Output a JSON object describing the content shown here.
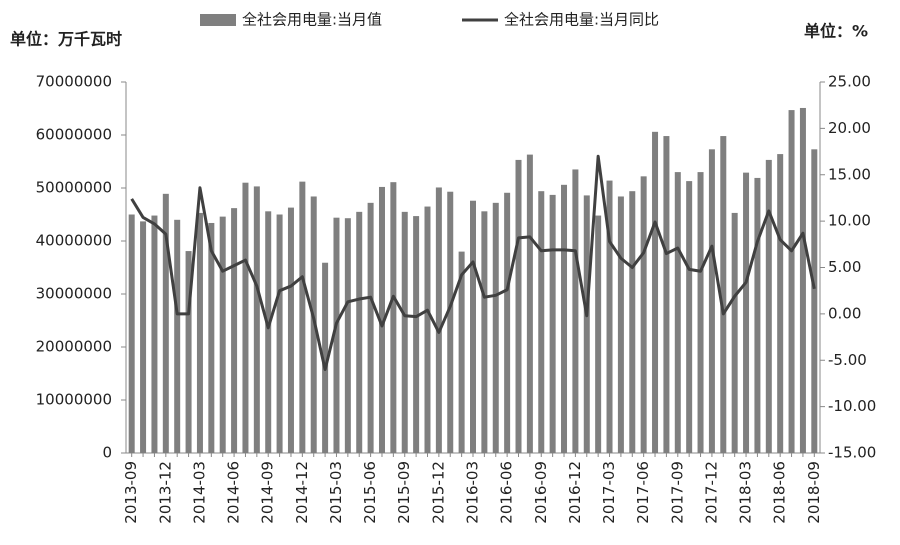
{
  "chart_data": {
    "type": "bar_line",
    "y_unit_label": "单位：万千瓦时",
    "y2_unit_label": "单位：%",
    "categories": [
      "2013-09",
      null,
      null,
      "2013-12",
      null,
      null,
      "2014-03",
      null,
      null,
      "2014-06",
      null,
      null,
      "2014-09",
      null,
      null,
      "2014-12",
      null,
      null,
      "2015-03",
      null,
      null,
      "2015-06",
      null,
      null,
      "2015-09",
      null,
      null,
      "2015-12",
      null,
      null,
      "2016-03",
      null,
      null,
      "2016-06",
      null,
      null,
      "2016-09",
      null,
      null,
      "2016-12",
      null,
      null,
      "2017-03",
      null,
      null,
      "2017-06",
      null,
      null,
      "2017-09",
      null,
      null,
      "2017-12",
      null,
      null,
      "2018-03",
      null,
      null,
      "2018-06",
      null,
      null,
      "2018-09"
    ],
    "series": [
      {
        "name": "全社会用电量:当月值",
        "type": "bar",
        "color": "#7f7f7f",
        "values": [
          45000000,
          43700000,
          44800000,
          48900000,
          44000000,
          38100000,
          45300000,
          43400000,
          44600000,
          46200000,
          51000000,
          50300000,
          45600000,
          45000000,
          46300000,
          51200000,
          48400000,
          35900000,
          44400000,
          44300000,
          45500000,
          47200000,
          50200000,
          51100000,
          45500000,
          44700000,
          46500000,
          50100000,
          49300000,
          38000000,
          47600000,
          45600000,
          47200000,
          49100000,
          55300000,
          56300000,
          49400000,
          48700000,
          50600000,
          53500000,
          48600000,
          44800000,
          51400000,
          48400000,
          49400000,
          52200000,
          60600000,
          59800000,
          53000000,
          51300000,
          53000000,
          57300000,
          59800000,
          45300000,
          52900000,
          51900000,
          55300000,
          56400000,
          64700000,
          65100000,
          57300000
        ]
      },
      {
        "name": "全社会用电量:当月同比",
        "type": "line",
        "axis": "y2",
        "color": "#404040",
        "values": [
          12.4,
          10.4,
          9.7,
          8.6,
          0.0,
          0.0,
          13.6,
          6.8,
          4.6,
          5.2,
          5.8,
          3.0,
          -1.5,
          2.5,
          3.0,
          4.0,
          -0.5,
          -6.0,
          -1.0,
          1.3,
          1.6,
          1.8,
          -1.3,
          1.9,
          -0.2,
          -0.3,
          0.4,
          -2.0,
          0.8,
          4.2,
          5.6,
          1.8,
          2.0,
          2.6,
          8.2,
          8.3,
          6.8,
          6.9,
          6.9,
          6.8,
          -0.2,
          17.0,
          7.8,
          6.0,
          5.0,
          6.6,
          9.9,
          6.5,
          7.1,
          4.8,
          4.6,
          7.3,
          0.0,
          1.9,
          3.4,
          7.8,
          11.1,
          8.0,
          6.8,
          8.7,
          2.7
        ]
      }
    ],
    "ylim": [
      0,
      70000000
    ],
    "yticks": [
      0,
      10000000,
      20000000,
      30000000,
      40000000,
      50000000,
      60000000,
      70000000
    ],
    "y2lim": [
      -15,
      25
    ],
    "y2ticks": [
      {
        "value": -15,
        "label": "-15.00"
      },
      {
        "value": -10,
        "label": "-10.00"
      },
      {
        "value": -5,
        "label": "-5.00"
      },
      {
        "value": 0,
        "label": "0.00"
      },
      {
        "value": 5,
        "label": "5.00"
      },
      {
        "value": 10,
        "label": "10.00"
      },
      {
        "value": 15,
        "label": "15.00"
      },
      {
        "value": 20,
        "label": "20.00"
      },
      {
        "value": 25,
        "label": "25.00"
      }
    ],
    "legend": "top"
  }
}
